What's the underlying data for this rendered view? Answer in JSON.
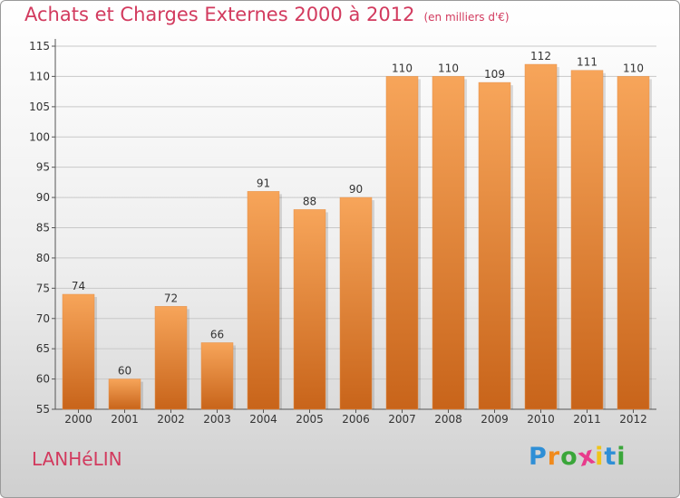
{
  "title": "Achats et Charges Externes 2000 à 2012",
  "unit": "(en milliers d'€)",
  "place": "LANHéLIN",
  "logo": {
    "letters": [
      "P",
      "r",
      "o",
      "x",
      "i",
      "t",
      "i"
    ],
    "colors": [
      "#2f8fd6",
      "#f08a1c",
      "#3aa63a",
      "#e83c8c",
      "#f0c419",
      "#2f8fd6",
      "#3aa63a"
    ]
  },
  "colors": {
    "title": "#d23a5e",
    "bar_top": "#f7a55a",
    "bar_bottom": "#c8641a",
    "grid": "#c8c8c8",
    "axis": "#555555"
  },
  "chart_data": {
    "type": "bar",
    "title": "Achats et Charges Externes 2000 à 2012",
    "subtitle": "(en milliers d'€)",
    "categories": [
      "2000",
      "2001",
      "2002",
      "2003",
      "2004",
      "2005",
      "2006",
      "2007",
      "2008",
      "2009",
      "2010",
      "2011",
      "2012"
    ],
    "values": [
      74,
      60,
      72,
      66,
      91,
      88,
      90,
      110,
      110,
      109,
      112,
      111,
      110
    ],
    "ylim": [
      55,
      115
    ],
    "yticks": [
      55,
      60,
      65,
      70,
      75,
      80,
      85,
      90,
      95,
      100,
      105,
      110,
      115
    ],
    "grid": true,
    "legend": "none"
  }
}
